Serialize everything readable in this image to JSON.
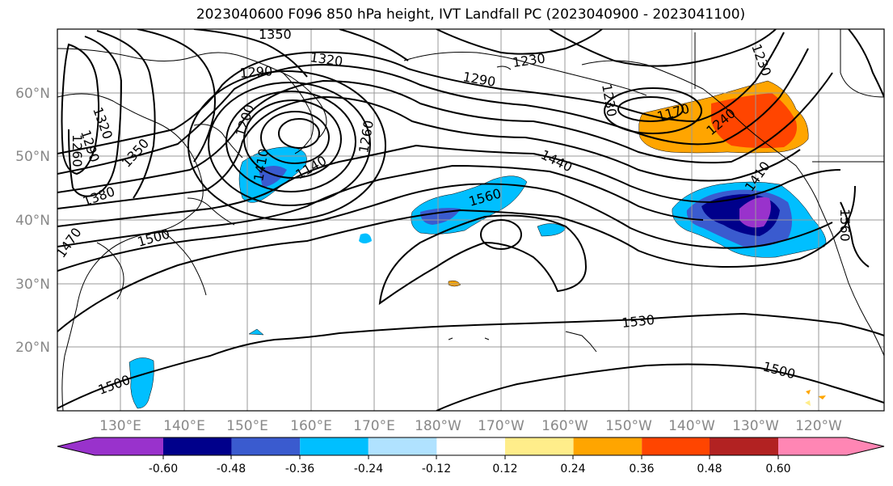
{
  "title": "2023040600 F096 850 hPa height, IVT Landfall PC (2023040900 - 2023041100)",
  "lat_labels": [
    "60°N",
    "50°N",
    "40°N",
    "30°N",
    "20°N"
  ],
  "lon_labels": [
    "130°E",
    "140°E",
    "150°E",
    "160°E",
    "170°E",
    "180°W",
    "170°W",
    "160°W",
    "150°W",
    "140°W",
    "130°W",
    "120°W"
  ],
  "contour_labels": [
    "1350",
    "1320",
    "1290",
    "1230",
    "1290",
    "1320",
    "1290",
    "1260",
    "1200",
    "1260",
    "1350",
    "1140",
    "1380",
    "1410",
    "1470",
    "1500",
    "1560",
    "1440",
    "1170",
    "1230",
    "1240",
    "1410",
    "1560",
    "1530",
    "1500",
    "1500",
    "1230"
  ],
  "colorbar": {
    "tick_labels": [
      "-0.60",
      "-0.48",
      "-0.36",
      "-0.24",
      "-0.12",
      "0.12",
      "0.24",
      "0.36",
      "0.48",
      "0.60"
    ],
    "colors": [
      "#9932cc",
      "#00008b",
      "#3a5bcf",
      "#00bfff",
      "#b0e2ff",
      "#ffffff",
      "#ffed8a",
      "#ffa500",
      "#ff4500",
      "#b22222",
      "#ff86b4"
    ]
  }
}
